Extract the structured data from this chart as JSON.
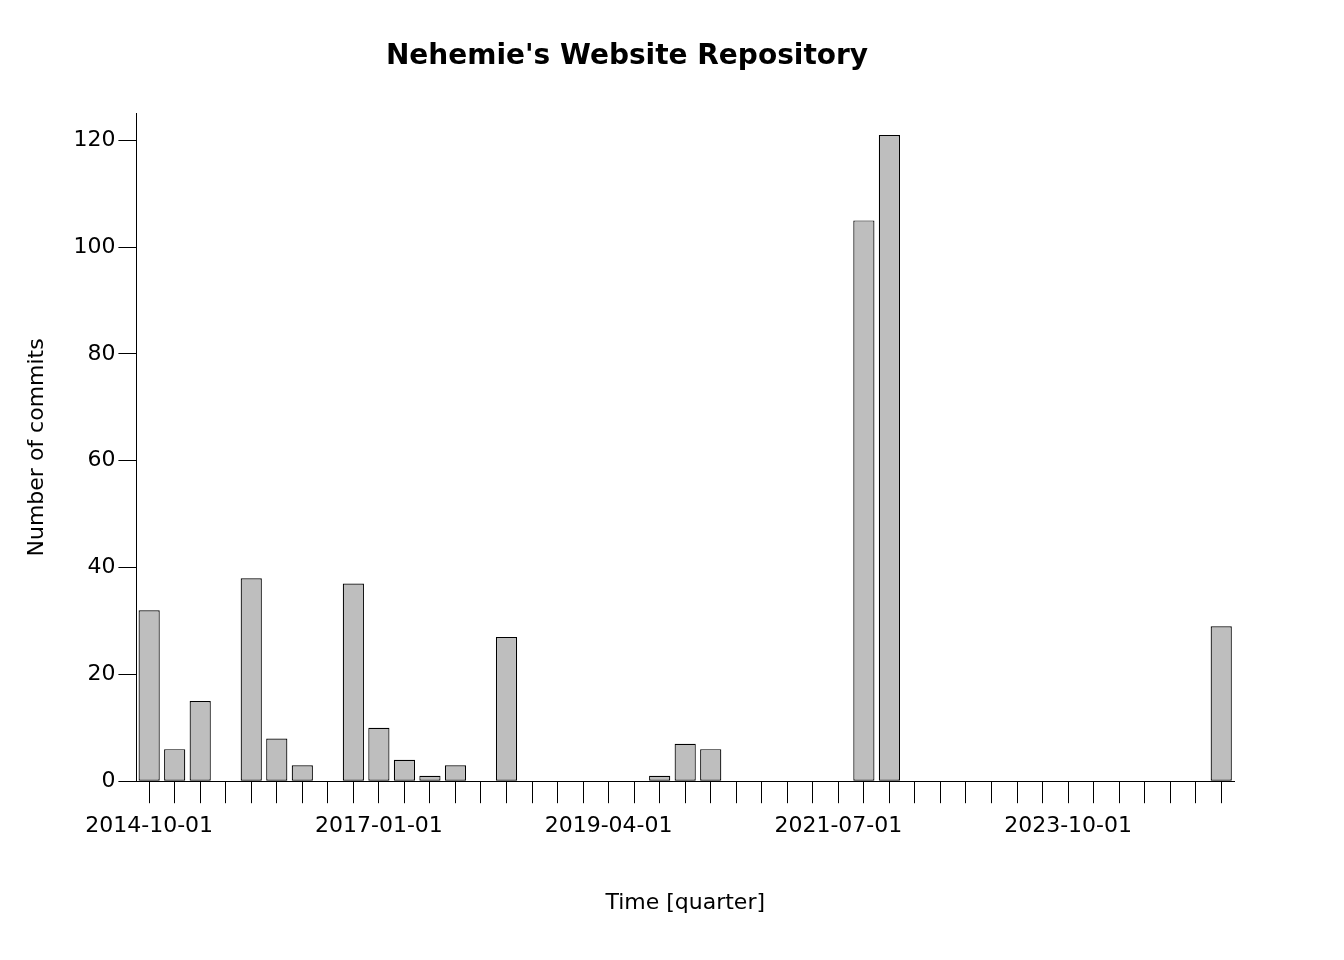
{
  "chart_data": {
    "type": "bar",
    "title": "Nehemie's Website Repository",
    "xlabel": "Time [quarter]",
    "ylabel": "Number of commits",
    "categories": [
      "2014-10-01",
      null,
      null,
      null,
      null,
      null,
      null,
      null,
      null,
      "2017-01-01",
      null,
      null,
      null,
      null,
      null,
      null,
      null,
      null,
      "2019-04-01",
      null,
      null,
      null,
      null,
      null,
      null,
      null,
      null,
      "2021-07-01",
      null,
      null,
      null,
      null,
      null,
      null,
      null,
      null,
      "2023-10-01",
      null,
      null,
      null,
      null,
      null,
      null
    ],
    "values": [
      32,
      6,
      15,
      0,
      38,
      8,
      3,
      0,
      37,
      10,
      4,
      1,
      3,
      0,
      27,
      0,
      0,
      0,
      0,
      0,
      1,
      7,
      6,
      0,
      0,
      0,
      0,
      0,
      105,
      121,
      0,
      0,
      0,
      0,
      0,
      0,
      0,
      0,
      0,
      0,
      0,
      0,
      29
    ],
    "color": "#bebebe",
    "ylim": [
      0,
      125
    ],
    "yticks": [
      0,
      20,
      40,
      60,
      80,
      100,
      120
    ]
  }
}
